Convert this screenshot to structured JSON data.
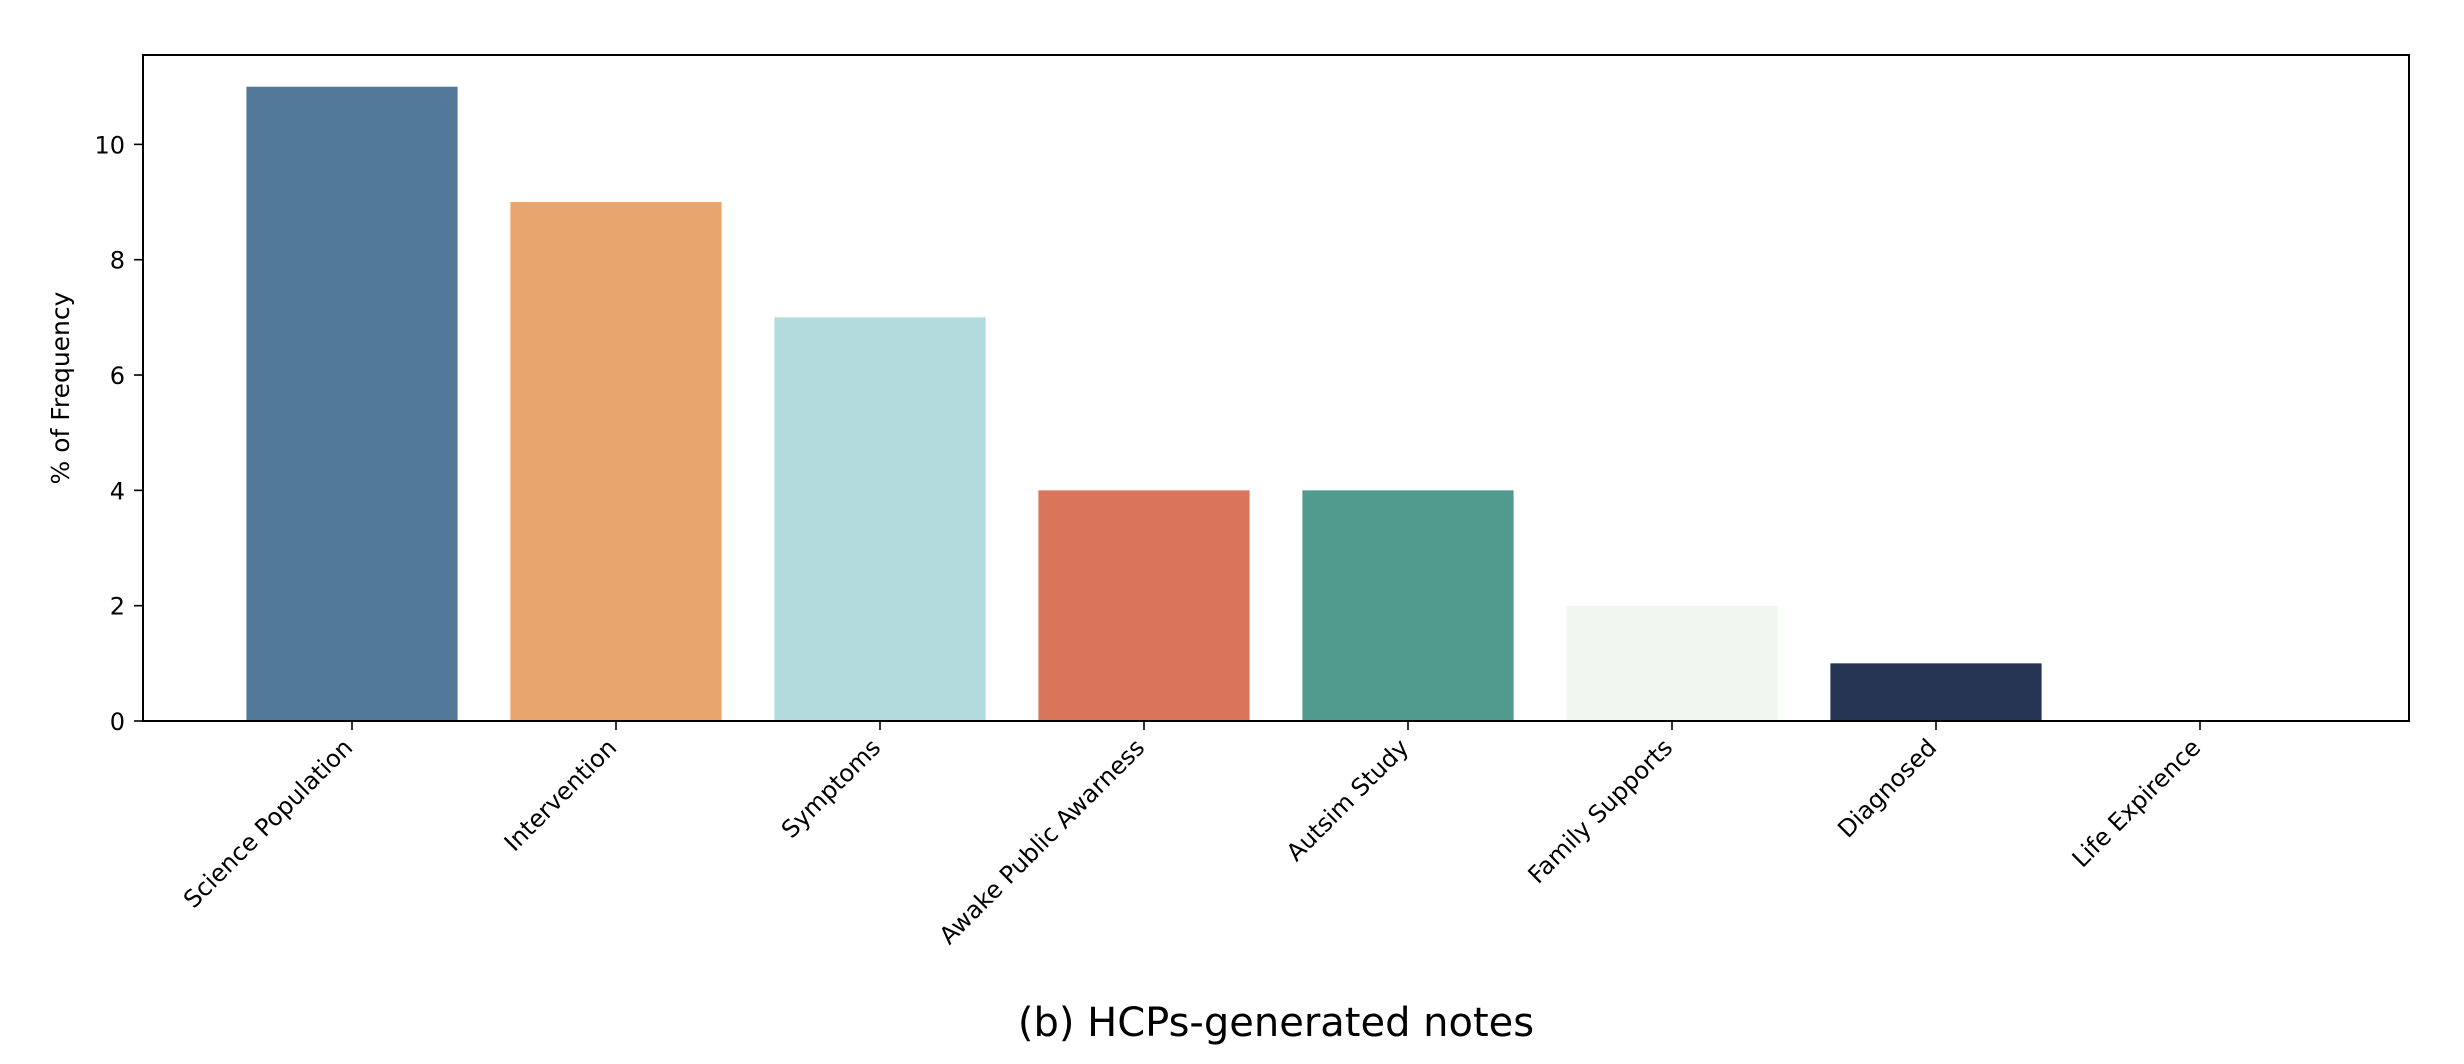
{
  "chart_data": {
    "type": "bar",
    "title": "",
    "caption": "(b) HCPs-generated notes",
    "xlabel": "",
    "ylabel": "% of Frequency",
    "categories": [
      "Science Population",
      "Intervention",
      "Symptoms",
      "Awake Public Awarness",
      "Autsim Study",
      "Family Supports",
      "Diagnosed",
      "Life Expirence"
    ],
    "values": [
      11,
      9,
      7,
      4,
      4,
      2,
      1,
      0
    ],
    "colors": [
      "#527a98",
      "#e9a56e",
      "#b3dadc",
      "#d9755a",
      "#519a8e",
      "#f0f7ee",
      "#253553",
      "#ffffff"
    ],
    "ylim": [
      0,
      11.55
    ],
    "yticks": [
      0,
      2,
      4,
      6,
      8,
      10
    ],
    "grid": false,
    "legend": "none"
  }
}
